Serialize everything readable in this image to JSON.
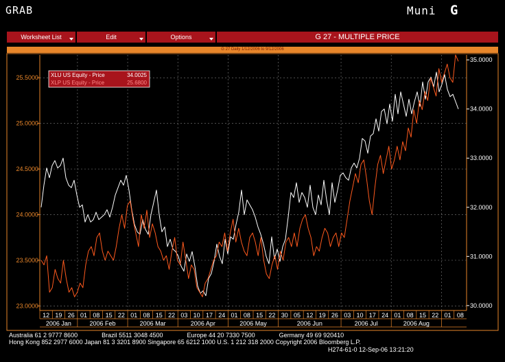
{
  "header": {
    "app": "GRAB",
    "muni": "Muni",
    "letter": "G"
  },
  "menu": {
    "worksheet": "Worksheet List",
    "edit": "Edit",
    "options": "Options",
    "title": "G 27 - MULTIPLE PRICE",
    "subtitle": "G 27 Daily 1/12/2006 to 9/12/2006"
  },
  "legend": {
    "xlu": {
      "name": "XLU US Equity - Price",
      "value": "34.0025",
      "color": "#ffffff"
    },
    "xlp": {
      "name": "XLP US Equity - Price",
      "value": "25.6800",
      "color": "#ff5a1e"
    }
  },
  "colors": {
    "accent": "#a8141c",
    "orange": "#e8862a",
    "grid": "#6e6e6e",
    "xlp": "#ff5a1e",
    "xlu": "#ffffff"
  },
  "chart_data": {
    "type": "line",
    "left_axis": {
      "ticks": [
        "23.0000",
        "23.5000",
        "24.0000",
        "24.5000",
        "25.0000",
        "25.5000"
      ],
      "ylim": [
        22.95,
        25.75
      ]
    },
    "right_axis": {
      "ticks": [
        "30.0000",
        "31.0000",
        "32.0000",
        "33.0000",
        "34.0000",
        "35.0000"
      ],
      "ylim": [
        29.9,
        35.1
      ]
    },
    "x_day_labels": [
      "12",
      "19",
      "26",
      "01",
      "08",
      "15",
      "22",
      "01",
      "08",
      "15",
      "22",
      "03",
      "10",
      "17",
      "24",
      "01",
      "08",
      "15",
      "22",
      "30",
      "05",
      "12",
      "19",
      "26",
      "03",
      "10",
      "17",
      "24",
      "01",
      "08",
      "15",
      "22",
      "01",
      "08"
    ],
    "x_month_labels": [
      "2006 Jan",
      "2006 Feb",
      "2006 Mar",
      "2006 Apr",
      "2006 May",
      "2006 Jun",
      "2006 Jul",
      "2006 Aug"
    ],
    "series": [
      {
        "name": "XLU US Equity - Price",
        "axis": "right",
        "values": [
          32.0,
          32.45,
          32.8,
          32.6,
          32.85,
          32.95,
          32.8,
          32.85,
          33.0,
          32.6,
          32.45,
          32.4,
          32.55,
          32.25,
          32.0,
          32.05,
          31.7,
          31.85,
          31.7,
          31.75,
          31.9,
          31.75,
          31.8,
          31.85,
          31.95,
          31.8,
          32.0,
          32.25,
          32.4,
          32.55,
          32.45,
          32.65,
          32.35,
          31.95,
          31.65,
          31.5,
          31.45,
          31.75,
          31.55,
          31.45,
          31.85,
          32.1,
          32.35,
          31.85,
          31.5,
          31.6,
          31.2,
          31.35,
          31.15,
          31.1,
          31.0,
          30.8,
          30.7,
          31.05,
          30.9,
          31.1,
          30.8,
          30.4,
          30.25,
          30.3,
          30.2,
          30.55,
          30.65,
          30.9,
          31.25,
          31.0,
          30.85,
          31.35,
          31.05,
          31.4,
          31.35,
          31.65,
          31.9,
          32.35,
          31.85,
          32.15,
          32.05,
          31.95,
          31.8,
          31.6,
          31.45,
          31.25,
          31.0,
          30.85,
          31.4,
          30.95,
          31.15,
          30.9,
          31.2,
          31.35,
          31.8,
          32.3,
          32.2,
          32.5,
          32.1,
          32.3,
          32.2,
          32.0,
          32.45,
          32.0,
          31.85,
          32.25,
          32.05,
          32.55,
          32.15,
          31.85,
          32.5,
          32.1,
          32.35,
          32.65,
          32.7,
          32.6,
          32.55,
          32.8,
          32.9,
          32.8,
          33.0,
          33.4,
          33.35,
          33.1,
          33.45,
          33.5,
          33.8,
          33.55,
          33.95,
          34.0,
          33.7,
          34.1,
          33.75,
          34.3,
          33.9,
          34.35,
          34.1,
          33.85,
          34.2,
          33.9,
          34.15,
          34.35,
          34.05,
          34.55,
          34.2,
          34.55,
          34.65,
          34.45,
          34.75,
          34.35,
          34.5,
          34.7,
          34.4,
          34.25,
          34.3,
          34.15,
          34.0
        ]
      },
      {
        "name": "XLP US Equity - Price",
        "axis": "left",
        "values": [
          23.5,
          23.45,
          23.55,
          23.15,
          23.2,
          23.4,
          23.3,
          23.25,
          23.5,
          23.3,
          23.15,
          23.2,
          23.1,
          23.15,
          23.25,
          23.2,
          23.45,
          23.6,
          23.65,
          23.55,
          23.75,
          23.8,
          23.6,
          23.5,
          23.6,
          23.55,
          23.5,
          23.65,
          23.85,
          24.0,
          23.85,
          24.1,
          24.15,
          23.95,
          23.8,
          23.65,
          24.0,
          23.85,
          24.05,
          23.75,
          23.9,
          23.8,
          23.65,
          23.6,
          23.5,
          23.55,
          23.4,
          23.6,
          23.75,
          23.5,
          23.45,
          23.7,
          23.5,
          23.3,
          23.45,
          23.4,
          23.2,
          23.15,
          23.1,
          23.25,
          23.3,
          23.4,
          23.5,
          23.55,
          23.7,
          23.65,
          23.8,
          23.6,
          23.8,
          23.95,
          23.7,
          23.85,
          23.7,
          23.6,
          23.55,
          23.75,
          23.8,
          23.7,
          23.55,
          23.75,
          23.5,
          23.35,
          23.3,
          23.45,
          23.55,
          23.4,
          23.6,
          23.5,
          23.7,
          23.75,
          23.65,
          23.8,
          23.65,
          23.85,
          23.95,
          24.0,
          23.85,
          23.75,
          23.55,
          23.65,
          23.6,
          23.75,
          23.85,
          23.8,
          23.65,
          23.75,
          23.8,
          23.65,
          23.8,
          23.75,
          23.95,
          24.15,
          24.3,
          24.45,
          24.35,
          24.55,
          24.6,
          24.4,
          24.15,
          24.0,
          24.3,
          24.55,
          24.65,
          24.45,
          24.6,
          24.75,
          24.5,
          24.6,
          24.75,
          24.6,
          24.8,
          24.7,
          24.95,
          24.85,
          25.15,
          25.0,
          25.25,
          25.15,
          25.35,
          25.25,
          25.5,
          25.4,
          25.3,
          25.6,
          25.45,
          25.55,
          25.65,
          25.5,
          25.45,
          25.75,
          25.68
        ]
      }
    ]
  },
  "footer": {
    "line1": "Australia 61 2 9777 8600              Brazil 5511 3048 4500              Europe 44 20 7330 7500              Germany 49 69 920410",
    "line2": "Hong Kong 852 2977 6000 Japan 81 3 3201 8900 Singapore 65 6212 1000 U.S. 1 212 318 2000 Copyright 2006 Bloomberg L.P.",
    "line3": "H274-61-0 12-Sep-06 13:21:20"
  }
}
